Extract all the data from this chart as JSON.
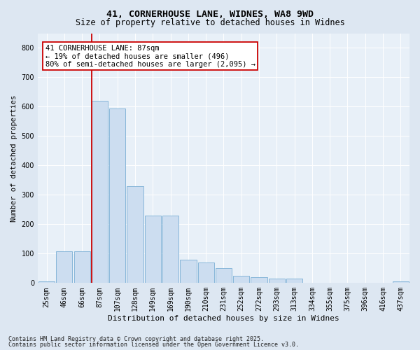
{
  "title1": "41, CORNERHOUSE LANE, WIDNES, WA8 9WD",
  "title2": "Size of property relative to detached houses in Widnes",
  "xlabel": "Distribution of detached houses by size in Widnes",
  "ylabel": "Number of detached properties",
  "categories": [
    "25sqm",
    "46sqm",
    "66sqm",
    "87sqm",
    "107sqm",
    "128sqm",
    "149sqm",
    "169sqm",
    "190sqm",
    "210sqm",
    "231sqm",
    "252sqm",
    "272sqm",
    "293sqm",
    "313sqm",
    "334sqm",
    "355sqm",
    "375sqm",
    "396sqm",
    "416sqm",
    "437sqm"
  ],
  "values": [
    5,
    107,
    107,
    620,
    595,
    330,
    230,
    230,
    80,
    70,
    50,
    25,
    20,
    15,
    15,
    0,
    0,
    0,
    0,
    0,
    5
  ],
  "bar_color": "#ccddf0",
  "bar_edge_color": "#7aaed4",
  "property_line_color": "#cc0000",
  "property_bar_index": 3,
  "annotation_text": "41 CORNERHOUSE LANE: 87sqm\n← 19% of detached houses are smaller (496)\n80% of semi-detached houses are larger (2,095) →",
  "annotation_box_facecolor": "#ffffff",
  "annotation_box_edgecolor": "#cc0000",
  "footnote1": "Contains HM Land Registry data © Crown copyright and database right 2025.",
  "footnote2": "Contains public sector information licensed under the Open Government Licence v3.0.",
  "fig_bg_color": "#dde7f2",
  "plot_bg_color": "#e8f0f8",
  "grid_color": "#ffffff",
  "ylim": [
    0,
    850
  ],
  "yticks": [
    0,
    100,
    200,
    300,
    400,
    500,
    600,
    700,
    800
  ],
  "title1_fontsize": 9.5,
  "title2_fontsize": 8.5,
  "xlabel_fontsize": 8,
  "ylabel_fontsize": 7.5,
  "tick_fontsize": 7,
  "annot_fontsize": 7.5,
  "footnote_fontsize": 6
}
